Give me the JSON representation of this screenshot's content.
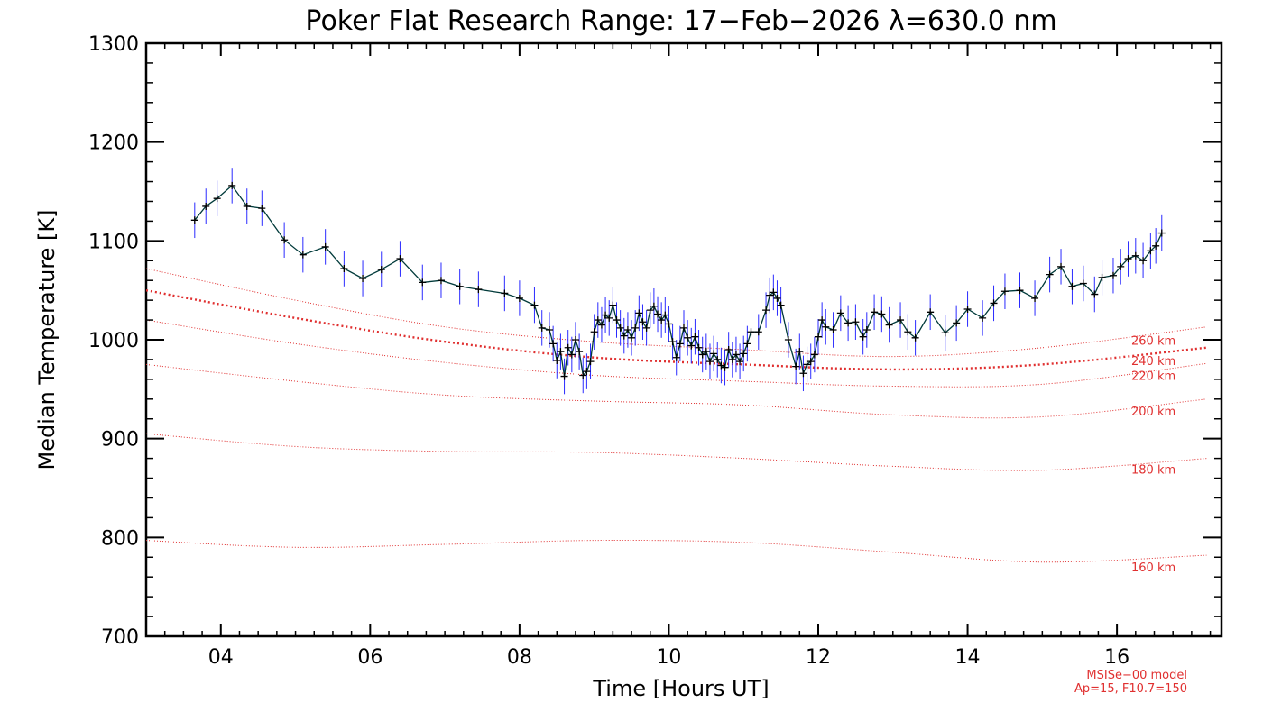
{
  "chart_data": {
    "type": "line",
    "title": "Poker Flat Research Range: 17−Feb−2026 λ=630.0 nm",
    "xlabel": "Time [Hours UT]",
    "ylabel": "Median Temperature [K]",
    "xlim": [
      3.0,
      17.4
    ],
    "ylim": [
      700,
      1300
    ],
    "x_ticks": [
      4,
      6,
      8,
      10,
      12,
      14,
      16
    ],
    "x_tick_labels": [
      "04",
      "06",
      "08",
      "10",
      "12",
      "14",
      "16"
    ],
    "y_ticks": [
      700,
      800,
      900,
      1000,
      1100,
      1200,
      1300
    ],
    "y_tick_labels": [
      "700",
      "800",
      "900",
      "1000",
      "1100",
      "1200",
      "1300"
    ],
    "colors": {
      "data_line": "#003a3a",
      "error_bars": "#2a2aff",
      "markers": "#000000",
      "model": "#e03030"
    },
    "series": [
      {
        "type": "line_with_errorbars",
        "points": [
          [
            3.65,
            1121
          ],
          [
            3.8,
            1135
          ],
          [
            3.95,
            1143
          ],
          [
            4.15,
            1156
          ],
          [
            4.35,
            1135
          ],
          [
            4.55,
            1133
          ],
          [
            4.85,
            1101
          ],
          [
            5.1,
            1086
          ],
          [
            5.4,
            1094
          ],
          [
            5.65,
            1072
          ],
          [
            5.9,
            1062
          ],
          [
            6.15,
            1071
          ],
          [
            6.4,
            1082
          ],
          [
            6.7,
            1058
          ],
          [
            6.95,
            1060
          ],
          [
            7.2,
            1054
          ],
          [
            7.45,
            1051
          ],
          [
            7.8,
            1047
          ],
          [
            8.0,
            1042
          ],
          [
            8.2,
            1035
          ],
          [
            8.3,
            1012
          ],
          [
            8.4,
            1010
          ],
          [
            8.45,
            996
          ],
          [
            8.5,
            979
          ],
          [
            8.55,
            988
          ],
          [
            8.6,
            963
          ],
          [
            8.65,
            992
          ],
          [
            8.7,
            985
          ],
          [
            8.75,
            1000
          ],
          [
            8.8,
            988
          ],
          [
            8.85,
            964
          ],
          [
            8.9,
            968
          ],
          [
            8.95,
            978
          ],
          [
            9.0,
            1008
          ],
          [
            9.05,
            1020
          ],
          [
            9.1,
            1015
          ],
          [
            9.15,
            1025
          ],
          [
            9.2,
            1022
          ],
          [
            9.25,
            1035
          ],
          [
            9.3,
            1020
          ],
          [
            9.35,
            1012
          ],
          [
            9.4,
            1004
          ],
          [
            9.45,
            1010
          ],
          [
            9.5,
            1002
          ],
          [
            9.55,
            1012
          ],
          [
            9.6,
            1027
          ],
          [
            9.65,
            1018
          ],
          [
            9.7,
            1012
          ],
          [
            9.75,
            1030
          ],
          [
            9.8,
            1034
          ],
          [
            9.85,
            1026
          ],
          [
            9.9,
            1020
          ],
          [
            9.95,
            1025
          ],
          [
            10.0,
            1016
          ],
          [
            10.05,
            998
          ],
          [
            10.1,
            982
          ],
          [
            10.15,
            996
          ],
          [
            10.2,
            1012
          ],
          [
            10.25,
            1002
          ],
          [
            10.3,
            994
          ],
          [
            10.35,
            1003
          ],
          [
            10.4,
            992
          ],
          [
            10.45,
            985
          ],
          [
            10.5,
            988
          ],
          [
            10.55,
            978
          ],
          [
            10.6,
            986
          ],
          [
            10.65,
            980
          ],
          [
            10.7,
            974
          ],
          [
            10.75,
            972
          ],
          [
            10.8,
            990
          ],
          [
            10.85,
            980
          ],
          [
            10.9,
            985
          ],
          [
            10.95,
            978
          ],
          [
            11.0,
            986
          ],
          [
            11.05,
            996
          ],
          [
            11.1,
            1008
          ],
          [
            11.2,
            1008
          ],
          [
            11.3,
            1030
          ],
          [
            11.35,
            1045
          ],
          [
            11.4,
            1048
          ],
          [
            11.45,
            1042
          ],
          [
            11.5,
            1035
          ],
          [
            11.6,
            1000
          ],
          [
            11.7,
            973
          ],
          [
            11.75,
            988
          ],
          [
            11.8,
            966
          ],
          [
            11.85,
            975
          ],
          [
            11.9,
            978
          ],
          [
            11.95,
            985
          ],
          [
            12.0,
            1003
          ],
          [
            12.05,
            1020
          ],
          [
            12.1,
            1013
          ],
          [
            12.2,
            1010
          ],
          [
            12.3,
            1027
          ],
          [
            12.4,
            1017
          ],
          [
            12.5,
            1018
          ],
          [
            12.6,
            1003
          ],
          [
            12.65,
            1010
          ],
          [
            12.75,
            1028
          ],
          [
            12.85,
            1026
          ],
          [
            12.95,
            1015
          ],
          [
            13.1,
            1020
          ],
          [
            13.2,
            1008
          ],
          [
            13.3,
            1002
          ],
          [
            13.5,
            1028
          ],
          [
            13.7,
            1007
          ],
          [
            13.85,
            1017
          ],
          [
            14.0,
            1031
          ],
          [
            14.2,
            1022
          ],
          [
            14.35,
            1037
          ],
          [
            14.5,
            1049
          ],
          [
            14.7,
            1050
          ],
          [
            14.9,
            1042
          ],
          [
            15.1,
            1066
          ],
          [
            15.25,
            1074
          ],
          [
            15.4,
            1054
          ],
          [
            15.55,
            1057
          ],
          [
            15.7,
            1046
          ],
          [
            15.8,
            1063
          ],
          [
            15.95,
            1065
          ],
          [
            16.05,
            1074
          ],
          [
            16.15,
            1082
          ],
          [
            16.25,
            1085
          ],
          [
            16.35,
            1080
          ],
          [
            16.45,
            1090
          ],
          [
            16.52,
            1095
          ],
          [
            16.6,
            1108
          ]
        ],
        "error": 18
      }
    ],
    "model_curves": [
      {
        "label": "260 km",
        "values": [
          [
            3.0,
            1072
          ],
          [
            5.0,
            1040
          ],
          [
            7.0,
            1013
          ],
          [
            9.0,
            998
          ],
          [
            11.0,
            990
          ],
          [
            13.0,
            983
          ],
          [
            15.0,
            992
          ],
          [
            17.2,
            1013
          ]
        ]
      },
      {
        "label": "240 km",
        "bold": true,
        "values": [
          [
            3.0,
            1050
          ],
          [
            5.0,
            1022
          ],
          [
            7.0,
            998
          ],
          [
            9.0,
            982
          ],
          [
            11.0,
            975
          ],
          [
            13.0,
            970
          ],
          [
            15.0,
            975
          ],
          [
            17.2,
            992
          ]
        ]
      },
      {
        "label": "220 km",
        "values": [
          [
            3.0,
            1020
          ],
          [
            5.0,
            996
          ],
          [
            7.0,
            977
          ],
          [
            9.0,
            964
          ],
          [
            11.0,
            958
          ],
          [
            13.0,
            953
          ],
          [
            15.0,
            955
          ],
          [
            17.2,
            976
          ]
        ]
      },
      {
        "label": "200 km",
        "values": [
          [
            3.0,
            975
          ],
          [
            5.0,
            958
          ],
          [
            7.0,
            944
          ],
          [
            9.0,
            938
          ],
          [
            11.0,
            934
          ],
          [
            13.0,
            924
          ],
          [
            15.0,
            922
          ],
          [
            17.2,
            940
          ]
        ]
      },
      {
        "label": "180 km",
        "values": [
          [
            3.0,
            905
          ],
          [
            5.0,
            892
          ],
          [
            7.0,
            887
          ],
          [
            9.0,
            886
          ],
          [
            11.0,
            880
          ],
          [
            13.0,
            872
          ],
          [
            15.0,
            868
          ],
          [
            17.2,
            880
          ]
        ]
      },
      {
        "label": "160 km",
        "values": [
          [
            3.0,
            797
          ],
          [
            5.0,
            790
          ],
          [
            7.0,
            793
          ],
          [
            9.0,
            797
          ],
          [
            11.0,
            795
          ],
          [
            13.0,
            785
          ],
          [
            15.0,
            775
          ],
          [
            17.2,
            782
          ]
        ]
      }
    ],
    "model_labels_display": [
      "260 km",
      "240 km",
      "220 km",
      "200 km",
      "180 km",
      "160 km"
    ],
    "notes": [
      "MSISe−00 model",
      "Ap=15, F10.7=150"
    ],
    "grid": false,
    "legend": "none"
  }
}
